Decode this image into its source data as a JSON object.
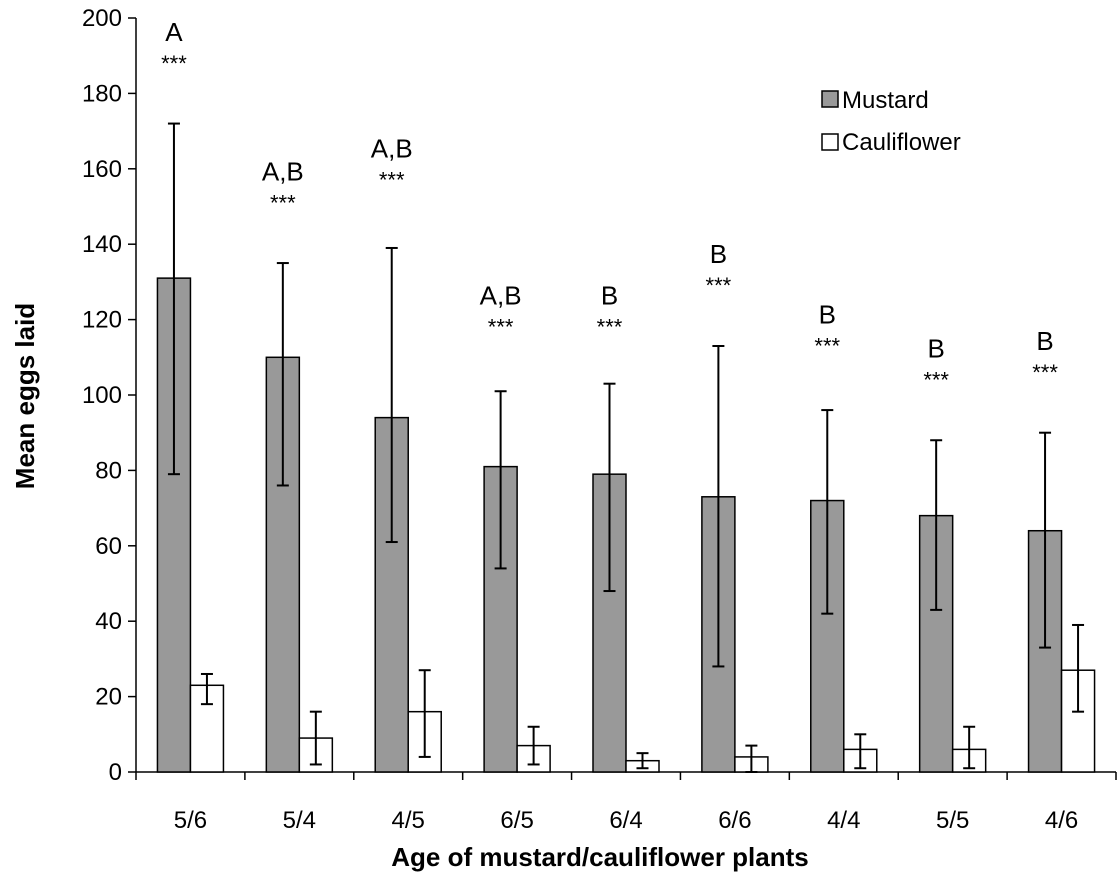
{
  "chart_data": {
    "type": "bar",
    "title": "",
    "xlabel": "Age of mustard/cauliflower plants",
    "ylabel": "Mean eggs laid",
    "ylim": [
      0,
      200
    ],
    "yticks": [
      0,
      20,
      40,
      60,
      80,
      100,
      120,
      140,
      160,
      180,
      200
    ],
    "categories": [
      "5/6",
      "5/4",
      "4/5",
      "6/5",
      "6/4",
      "6/6",
      "4/4",
      "5/5",
      "4/6"
    ],
    "series": [
      {
        "name": "Mustard",
        "color": "#999999",
        "values": [
          131,
          110,
          94,
          81,
          79,
          73,
          72,
          68,
          64
        ],
        "err_low": [
          79,
          76,
          61,
          54,
          48,
          28,
          42,
          43,
          33
        ],
        "err_high": [
          172,
          135,
          139,
          101,
          103,
          113,
          96,
          88,
          90
        ]
      },
      {
        "name": "Cauliflower",
        "color": "#ffffff",
        "values": [
          23,
          9,
          16,
          7,
          3,
          4,
          6,
          6,
          27
        ],
        "err_low": [
          18,
          2,
          4,
          2,
          1,
          0,
          1,
          1,
          16
        ],
        "err_high": [
          26,
          16,
          27,
          12,
          5,
          7,
          10,
          12,
          39
        ]
      }
    ],
    "annotations": [
      {
        "letter": "A",
        "stars": "***",
        "y": 186
      },
      {
        "letter": "A,B",
        "stars": "***",
        "y": 149
      },
      {
        "letter": "A,B",
        "stars": "***",
        "y": 155
      },
      {
        "letter": "A,B",
        "stars": "***",
        "y": 116
      },
      {
        "letter": "B",
        "stars": "***",
        "y": 116
      },
      {
        "letter": "B",
        "stars": "***",
        "y": 127
      },
      {
        "letter": "B",
        "stars": "***",
        "y": 111
      },
      {
        "letter": "B",
        "stars": "***",
        "y": 102
      },
      {
        "letter": "B",
        "stars": "***",
        "y": 104
      }
    ],
    "grid": false,
    "legend_position": "top-right"
  }
}
